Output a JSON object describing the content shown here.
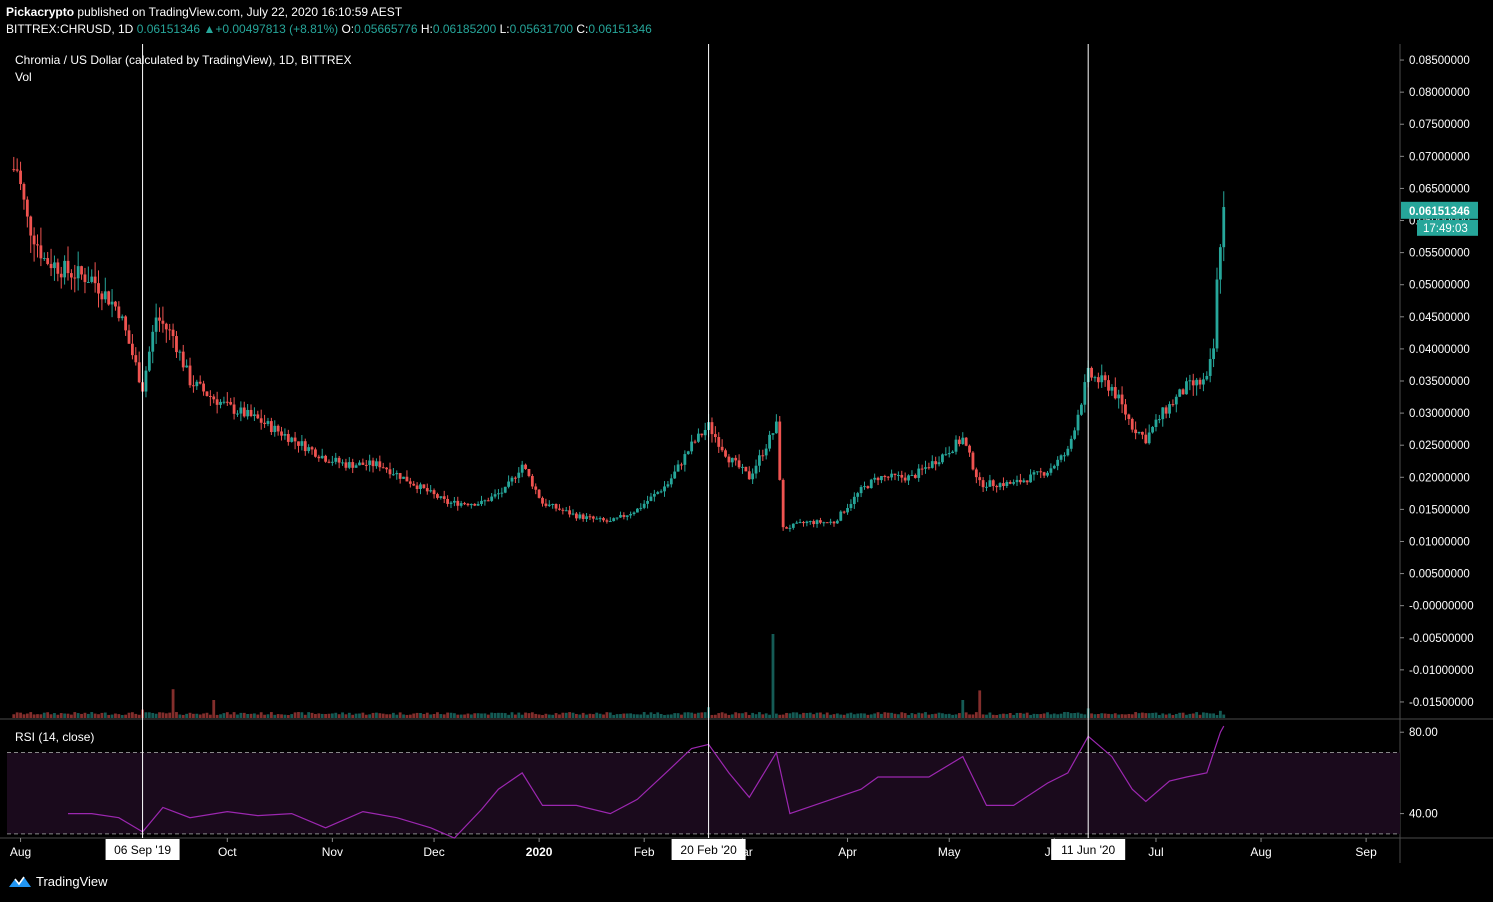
{
  "header": {
    "author": "Pickacrypto",
    "published_text": "published on TradingView.com, July 22, 2020 16:10:59 AEST",
    "symbol": "BITTREX:CHRUSD, 1D",
    "last": "0.06151346",
    "change": "+0.00497813 (+8.81%)",
    "o_label": "O:",
    "o_value": "0.05665776",
    "h_label": "H:",
    "h_value": "0.06185200",
    "l_label": "L:",
    "l_value": "0.05631700",
    "c_label": "C:",
    "c_value": "0.06151346",
    "up_arrow": "▲"
  },
  "footer": {
    "brand": "TradingView",
    "logo_icon": "tradingview-logo-icon"
  },
  "colors": {
    "up": "#26a69a",
    "down": "#ef5350",
    "rsi": "#9c27b0",
    "rsi_band": "#1a0a1c",
    "axis_bg": "#000000",
    "text": "#ffffff"
  },
  "chart_data": {
    "type": "candlestick",
    "title": "Chromia / US Dollar (calculated by TradingView), 1D, BITTREX",
    "volume_label": "Vol",
    "indicator_label": "RSI (14, close)",
    "price_ticks": [
      "0.08500000",
      "0.08000000",
      "0.07500000",
      "0.07000000",
      "0.06500000",
      "0.06000000",
      "0.05500000",
      "0.05000000",
      "0.04500000",
      "0.04000000",
      "0.03500000",
      "0.03000000",
      "0.02500000",
      "0.02000000",
      "0.01500000",
      "0.01000000",
      "0.00500000",
      "-0.00000000",
      "-0.00500000",
      "-0.01000000",
      "-0.01500000"
    ],
    "price_range": [
      -0.0175,
      0.0875
    ],
    "price_tick_values": [
      0.085,
      0.08,
      0.075,
      0.07,
      0.065,
      0.06,
      0.055,
      0.05,
      0.045,
      0.04,
      0.035,
      0.03,
      0.025,
      0.02,
      0.015,
      0.01,
      0.005,
      0.0,
      -0.005,
      -0.01,
      -0.015
    ],
    "last_price_label": "0.06151346",
    "countdown_label": "17:49:03",
    "rsi_ticks": [
      "80.00",
      "40.00"
    ],
    "rsi_tick_values": [
      80,
      40
    ],
    "rsi_range": [
      28,
      86
    ],
    "rsi_bands": [
      70,
      30
    ],
    "x_ticks": [
      {
        "label": "Aug",
        "date": "2019-08-01"
      },
      {
        "label": "Oct",
        "date": "2019-10-01"
      },
      {
        "label": "Nov",
        "date": "2019-11-01"
      },
      {
        "label": "Dec",
        "date": "2019-12-01"
      },
      {
        "label": "2020",
        "date": "2020-01-01"
      },
      {
        "label": "Feb",
        "date": "2020-02-01"
      },
      {
        "label": "Mar",
        "date": "2020-03-01"
      },
      {
        "label": "Apr",
        "date": "2020-04-01"
      },
      {
        "label": "May",
        "date": "2020-05-01"
      },
      {
        "label": "Jun",
        "date": "2020-06-01"
      },
      {
        "label": "Jul",
        "date": "2020-07-01"
      },
      {
        "label": "Aug",
        "date": "2020-08-01"
      },
      {
        "label": "Sep",
        "date": "2020-09-01"
      }
    ],
    "x_range": [
      "2019-07-28",
      "2020-09-11"
    ],
    "markers": [
      {
        "label": "06 Sep '19",
        "date": "2019-09-06"
      },
      {
        "label": "20 Feb '20",
        "date": "2020-02-20"
      },
      {
        "label": "11 Jun '20",
        "date": "2020-06-11"
      }
    ],
    "price_path": [
      [
        "2019-07-31",
        0.068
      ],
      [
        "2019-08-03",
        0.06
      ],
      [
        "2019-08-08",
        0.054
      ],
      [
        "2019-08-15",
        0.052
      ],
      [
        "2019-08-22",
        0.051
      ],
      [
        "2019-08-30",
        0.046
      ],
      [
        "2019-09-06",
        0.034
      ],
      [
        "2019-09-10",
        0.045
      ],
      [
        "2019-09-15",
        0.042
      ],
      [
        "2019-09-20",
        0.035
      ],
      [
        "2019-09-25",
        0.033
      ],
      [
        "2019-10-01",
        0.031
      ],
      [
        "2019-10-10",
        0.029
      ],
      [
        "2019-10-20",
        0.026
      ],
      [
        "2019-10-30",
        0.023
      ],
      [
        "2019-11-05",
        0.022
      ],
      [
        "2019-11-15",
        0.022
      ],
      [
        "2019-11-25",
        0.019
      ],
      [
        "2019-12-05",
        0.016
      ],
      [
        "2019-12-15",
        0.016
      ],
      [
        "2019-12-22",
        0.018
      ],
      [
        "2019-12-27",
        0.022
      ],
      [
        "2020-01-02",
        0.016
      ],
      [
        "2020-01-12",
        0.014
      ],
      [
        "2020-01-22",
        0.013
      ],
      [
        "2020-01-30",
        0.015
      ],
      [
        "2020-02-08",
        0.019
      ],
      [
        "2020-02-15",
        0.025
      ],
      [
        "2020-02-20",
        0.028
      ],
      [
        "2020-02-26",
        0.023
      ],
      [
        "2020-03-03",
        0.02
      ],
      [
        "2020-03-08",
        0.025
      ],
      [
        "2020-03-11",
        0.028
      ],
      [
        "2020-03-13",
        0.012
      ],
      [
        "2020-03-20",
        0.013
      ],
      [
        "2020-03-28",
        0.013
      ],
      [
        "2020-04-05",
        0.018
      ],
      [
        "2020-04-10",
        0.02
      ],
      [
        "2020-04-20",
        0.02
      ],
      [
        "2020-04-28",
        0.023
      ],
      [
        "2020-05-05",
        0.026
      ],
      [
        "2020-05-10",
        0.019
      ],
      [
        "2020-05-20",
        0.019
      ],
      [
        "2020-05-30",
        0.021
      ],
      [
        "2020-06-05",
        0.024
      ],
      [
        "2020-06-11",
        0.036
      ],
      [
        "2020-06-18",
        0.034
      ],
      [
        "2020-06-24",
        0.028
      ],
      [
        "2020-06-28",
        0.026
      ],
      [
        "2020-07-03",
        0.03
      ],
      [
        "2020-07-10",
        0.034
      ],
      [
        "2020-07-16",
        0.035
      ],
      [
        "2020-07-18",
        0.04
      ],
      [
        "2020-07-19",
        0.05
      ],
      [
        "2020-07-20",
        0.057
      ],
      [
        "2020-07-21",
        0.0615
      ]
    ],
    "rsi_path": [
      [
        "2019-08-15",
        40
      ],
      [
        "2019-08-22",
        40
      ],
      [
        "2019-08-30",
        38
      ],
      [
        "2019-09-06",
        31
      ],
      [
        "2019-09-12",
        43
      ],
      [
        "2019-09-20",
        38
      ],
      [
        "2019-10-01",
        41
      ],
      [
        "2019-10-10",
        39
      ],
      [
        "2019-10-20",
        40
      ],
      [
        "2019-10-30",
        33
      ],
      [
        "2019-11-10",
        41
      ],
      [
        "2019-11-20",
        38
      ],
      [
        "2019-11-30",
        33
      ],
      [
        "2019-12-07",
        28
      ],
      [
        "2019-12-15",
        42
      ],
      [
        "2019-12-20",
        52
      ],
      [
        "2019-12-27",
        60
      ],
      [
        "2020-01-02",
        44
      ],
      [
        "2020-01-12",
        44
      ],
      [
        "2020-01-22",
        40
      ],
      [
        "2020-01-30",
        47
      ],
      [
        "2020-02-08",
        61
      ],
      [
        "2020-02-15",
        72
      ],
      [
        "2020-02-20",
        74
      ],
      [
        "2020-02-26",
        60
      ],
      [
        "2020-03-03",
        48
      ],
      [
        "2020-03-11",
        70
      ],
      [
        "2020-03-15",
        40
      ],
      [
        "2020-03-22",
        44
      ],
      [
        "2020-04-05",
        52
      ],
      [
        "2020-04-10",
        58
      ],
      [
        "2020-04-25",
        58
      ],
      [
        "2020-05-05",
        68
      ],
      [
        "2020-05-12",
        44
      ],
      [
        "2020-05-20",
        44
      ],
      [
        "2020-05-30",
        55
      ],
      [
        "2020-06-05",
        60
      ],
      [
        "2020-06-11",
        78
      ],
      [
        "2020-06-18",
        68
      ],
      [
        "2020-06-24",
        52
      ],
      [
        "2020-06-28",
        46
      ],
      [
        "2020-07-05",
        56
      ],
      [
        "2020-07-10",
        58
      ],
      [
        "2020-07-16",
        60
      ],
      [
        "2020-07-18",
        70
      ],
      [
        "2020-07-20",
        80
      ],
      [
        "2020-07-21",
        83
      ]
    ],
    "volume_peaks": [
      [
        "2019-09-06",
        0.7
      ],
      [
        "2019-09-15",
        2.4
      ],
      [
        "2019-09-27",
        1.5
      ],
      [
        "2020-02-20",
        0.9
      ],
      [
        "2020-03-10",
        7.0
      ],
      [
        "2020-05-05",
        1.5
      ],
      [
        "2020-05-10",
        2.3
      ],
      [
        "2020-06-11",
        0.8
      ],
      [
        "2020-07-20",
        0.6
      ]
    ]
  }
}
